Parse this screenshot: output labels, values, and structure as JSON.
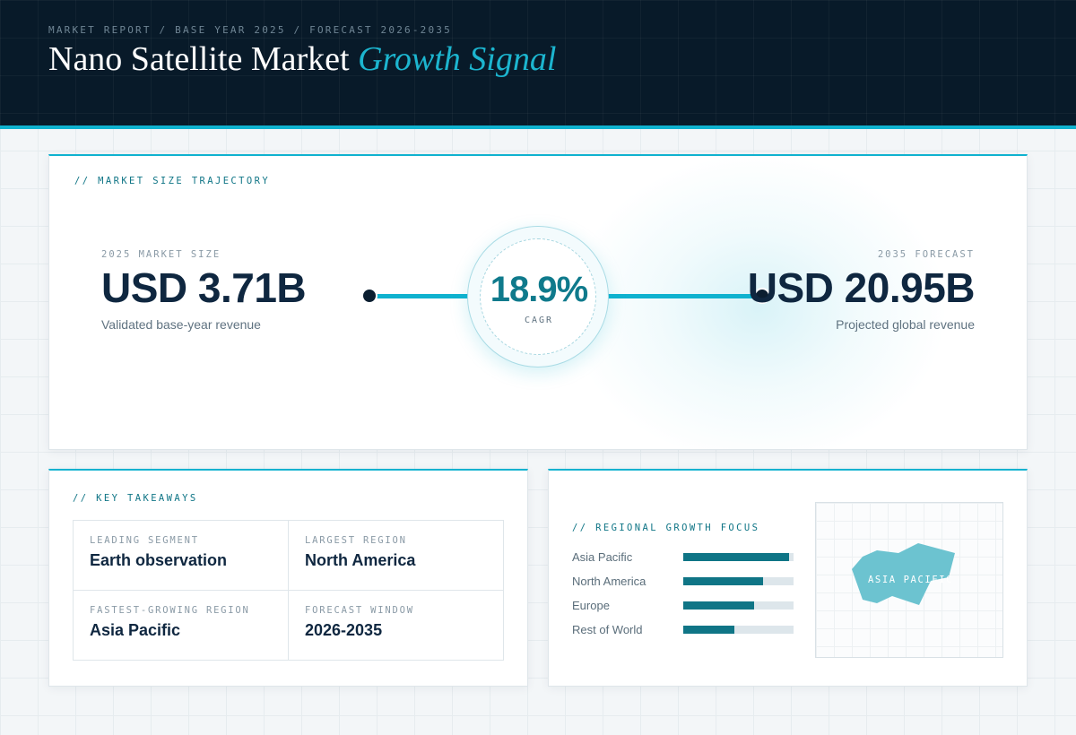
{
  "header": {
    "eyebrow": "MARKET REPORT / BASE YEAR 2025 / FORECAST 2026-2035",
    "title_main": "Nano Satellite Market",
    "title_accent": "Growth Signal"
  },
  "trajectory": {
    "label": "// MARKET SIZE TRAJECTORY",
    "base": {
      "label": "2025 MARKET SIZE",
      "value": "USD 3.71B",
      "sub": "Validated base-year revenue"
    },
    "forecast": {
      "label": "2035 FORECAST",
      "value": "USD 20.95B",
      "sub": "Projected global revenue"
    },
    "cagr": {
      "value": "18.9%",
      "label": "CAGR"
    }
  },
  "takeaways": {
    "label": "// KEY TAKEAWAYS",
    "items": [
      {
        "label": "LEADING SEGMENT",
        "value": "Earth observation"
      },
      {
        "label": "LARGEST REGION",
        "value": "North America"
      },
      {
        "label": "FASTEST-GROWING REGION",
        "value": "Asia Pacific"
      },
      {
        "label": "FORECAST WINDOW",
        "value": "2026-2035"
      }
    ]
  },
  "regional": {
    "label": "// REGIONAL GROWTH FOCUS",
    "bars": [
      {
        "name": "Asia Pacific",
        "level": 0.96
      },
      {
        "name": "North America",
        "level": 0.72
      },
      {
        "name": "Europe",
        "level": 0.64
      },
      {
        "name": "Rest of World",
        "level": 0.46
      }
    ],
    "map_label": "ASIA PACIFIC"
  },
  "colors": {
    "accent": "#0fb2cf",
    "accent_dark": "#0f7586",
    "header_bg": "#081a29",
    "text_dark": "#0f2740",
    "map_shape": "#6cc3d0"
  }
}
